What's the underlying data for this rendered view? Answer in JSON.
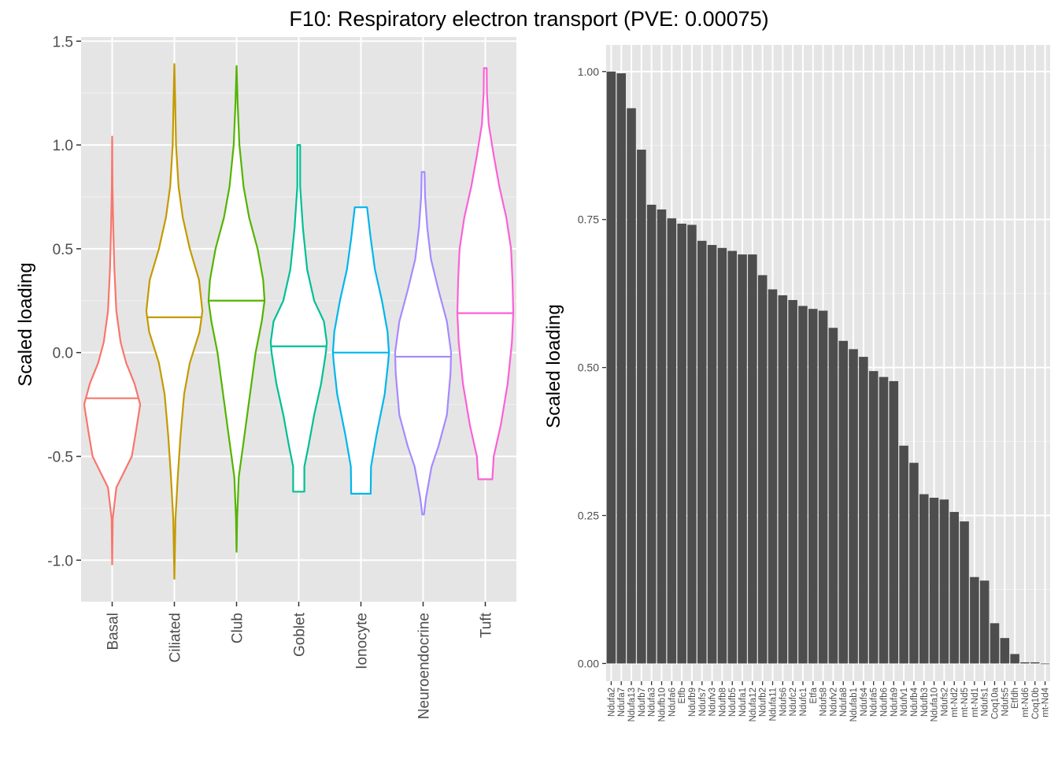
{
  "title": "F10: Respiratory electron transport (PVE: 0.00075)",
  "chart_data": [
    {
      "type": "violin",
      "ylabel": "Scaled loading",
      "xlabel": "",
      "ylim": [
        -1.2,
        1.52
      ],
      "yticks": [
        -1.0,
        -0.5,
        0.0,
        0.5,
        1.0,
        1.5
      ],
      "ytick_labels": [
        "-1.0",
        "-0.5",
        "0.0",
        "0.5",
        "1.0",
        "1.5"
      ],
      "grid": true,
      "categories": [
        "Basal",
        "Ciliated",
        "Club",
        "Goblet",
        "Ionocyte",
        "Neuroendocrine",
        "Tuft"
      ],
      "colors": [
        "#F8766D",
        "#C49A00",
        "#53B400",
        "#00C094",
        "#00B6EB",
        "#A58AFF",
        "#FB61D7"
      ],
      "violins": [
        {
          "min": -1.02,
          "max": 1.04,
          "median": -0.22,
          "profile": [
            [
              -1.02,
              0.0
            ],
            [
              -0.8,
              0.02
            ],
            [
              -0.65,
              0.15
            ],
            [
              -0.5,
              0.7
            ],
            [
              -0.38,
              0.85
            ],
            [
              -0.25,
              1.0
            ],
            [
              -0.15,
              0.8
            ],
            [
              -0.05,
              0.5
            ],
            [
              0.05,
              0.3
            ],
            [
              0.2,
              0.15
            ],
            [
              0.4,
              0.08
            ],
            [
              0.6,
              0.04
            ],
            [
              0.8,
              0.01
            ],
            [
              1.04,
              0.0
            ]
          ]
        },
        {
          "min": -1.09,
          "max": 1.39,
          "median": 0.17,
          "profile": [
            [
              -1.09,
              0.0
            ],
            [
              -0.8,
              0.04
            ],
            [
              -0.6,
              0.12
            ],
            [
              -0.4,
              0.22
            ],
            [
              -0.2,
              0.35
            ],
            [
              -0.05,
              0.55
            ],
            [
              0.1,
              0.9
            ],
            [
              0.2,
              1.0
            ],
            [
              0.35,
              0.88
            ],
            [
              0.5,
              0.55
            ],
            [
              0.65,
              0.3
            ],
            [
              0.8,
              0.15
            ],
            [
              1.0,
              0.06
            ],
            [
              1.2,
              0.03
            ],
            [
              1.39,
              0.0
            ]
          ]
        },
        {
          "min": -0.96,
          "max": 1.38,
          "median": 0.25,
          "profile": [
            [
              -0.96,
              0.0
            ],
            [
              -0.8,
              0.02
            ],
            [
              -0.6,
              0.08
            ],
            [
              -0.4,
              0.28
            ],
            [
              -0.2,
              0.48
            ],
            [
              0.0,
              0.68
            ],
            [
              0.15,
              0.9
            ],
            [
              0.25,
              1.0
            ],
            [
              0.35,
              0.95
            ],
            [
              0.5,
              0.75
            ],
            [
              0.65,
              0.45
            ],
            [
              0.8,
              0.25
            ],
            [
              1.0,
              0.1
            ],
            [
              1.2,
              0.04
            ],
            [
              1.38,
              0.0
            ]
          ]
        },
        {
          "min": -0.67,
          "max": 1.0,
          "median": 0.03,
          "profile": [
            [
              -0.67,
              0.2
            ],
            [
              -0.55,
              0.2
            ],
            [
              -0.45,
              0.35
            ],
            [
              -0.3,
              0.55
            ],
            [
              -0.15,
              0.8
            ],
            [
              0.0,
              0.97
            ],
            [
              0.05,
              1.0
            ],
            [
              0.15,
              0.9
            ],
            [
              0.25,
              0.55
            ],
            [
              0.4,
              0.3
            ],
            [
              0.6,
              0.15
            ],
            [
              0.8,
              0.05
            ],
            [
              1.0,
              0.05
            ]
          ]
        },
        {
          "min": -0.68,
          "max": 0.7,
          "median": 0.0,
          "profile": [
            [
              -0.68,
              0.35
            ],
            [
              -0.55,
              0.36
            ],
            [
              -0.4,
              0.55
            ],
            [
              -0.2,
              0.85
            ],
            [
              -0.05,
              0.97
            ],
            [
              0.0,
              1.0
            ],
            [
              0.1,
              0.95
            ],
            [
              0.25,
              0.75
            ],
            [
              0.4,
              0.5
            ],
            [
              0.55,
              0.35
            ],
            [
              0.7,
              0.22
            ]
          ]
        },
        {
          "min": -0.78,
          "max": 0.87,
          "median": -0.02,
          "profile": [
            [
              -0.78,
              0.03
            ],
            [
              -0.7,
              0.1
            ],
            [
              -0.55,
              0.3
            ],
            [
              -0.45,
              0.55
            ],
            [
              -0.3,
              0.85
            ],
            [
              -0.1,
              0.98
            ],
            [
              0.0,
              1.0
            ],
            [
              0.15,
              0.85
            ],
            [
              0.3,
              0.55
            ],
            [
              0.45,
              0.28
            ],
            [
              0.6,
              0.15
            ],
            [
              0.75,
              0.07
            ],
            [
              0.87,
              0.05
            ]
          ]
        },
        {
          "min": -0.61,
          "max": 1.37,
          "median": 0.19,
          "profile": [
            [
              -0.61,
              0.25
            ],
            [
              -0.5,
              0.3
            ],
            [
              -0.35,
              0.55
            ],
            [
              -0.15,
              0.8
            ],
            [
              0.05,
              0.95
            ],
            [
              0.19,
              1.0
            ],
            [
              0.35,
              0.97
            ],
            [
              0.5,
              0.92
            ],
            [
              0.65,
              0.75
            ],
            [
              0.8,
              0.5
            ],
            [
              0.95,
              0.3
            ],
            [
              1.1,
              0.12
            ],
            [
              1.25,
              0.06
            ],
            [
              1.37,
              0.05
            ]
          ]
        }
      ]
    },
    {
      "type": "bar",
      "ylabel": "Scaled loading",
      "xlabel": "",
      "ylim": [
        -0.03,
        1.045
      ],
      "yticks": [
        0.0,
        0.25,
        0.5,
        0.75,
        1.0
      ],
      "ytick_labels": [
        "0.00",
        "0.25",
        "0.50",
        "0.75",
        "1.00"
      ],
      "grid": true,
      "bar_color": "#4D4D4D",
      "categories": [
        "Ndufa2",
        "Ndufa7",
        "Ndufa13",
        "Ndufb7",
        "Ndufa3",
        "Ndufb10",
        "Ndufa6",
        "Etfb",
        "Ndufb9",
        "Ndufs7",
        "Ndufv3",
        "Ndufb8",
        "Ndufb5",
        "Ndufa1",
        "Ndufa12",
        "Ndufb2",
        "Ndufa11",
        "Ndufs6",
        "Ndufc2",
        "Ndufc1",
        "Etfa",
        "Ndufs8",
        "Ndufv2",
        "Ndufa8",
        "Ndufab1",
        "Ndufs4",
        "Ndufa5",
        "Ndufb6",
        "Ndufa9",
        "Ndufv1",
        "Ndufb4",
        "Ndufb3",
        "Ndufa10",
        "Ndufs2",
        "mt-Nd2",
        "mt-Nd5",
        "mt-Nd1",
        "Ndufs1",
        "Coq10a",
        "Ndufs5",
        "Etfdh",
        "mt-Nd6",
        "Coq10b",
        "mt-Nd4"
      ],
      "values": [
        1.0,
        0.997,
        0.938,
        0.868,
        0.775,
        0.767,
        0.752,
        0.743,
        0.741,
        0.714,
        0.707,
        0.702,
        0.697,
        0.691,
        0.691,
        0.656,
        0.632,
        0.622,
        0.614,
        0.604,
        0.599,
        0.596,
        0.567,
        0.545,
        0.531,
        0.518,
        0.494,
        0.484,
        0.477,
        0.368,
        0.339,
        0.286,
        0.28,
        0.277,
        0.256,
        0.24,
        0.146,
        0.14,
        0.068,
        0.043,
        0.016,
        0.002,
        0.002,
        0.0
      ]
    }
  ]
}
